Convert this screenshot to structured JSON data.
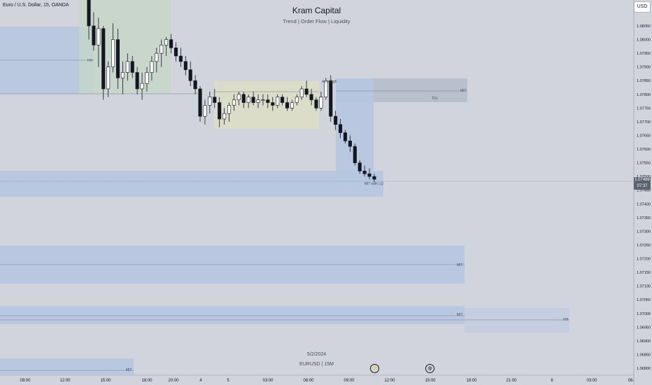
{
  "header": {
    "symbol": "Euro / U.S. Dollar, 15, OANDA",
    "currency_button": "USD"
  },
  "watermark": {
    "title": "Kram Capital",
    "subtitle": "Trend | Order Flow | Liquidity",
    "date": "5/2/2024",
    "symbol_line": "EURUSD | 15M"
  },
  "icons": {
    "left": "flash-icon",
    "right": "globe-icon"
  },
  "colors": {
    "background": "#d1d4dc",
    "zone_blue": "#b6c6e0",
    "zone_green": "#c5d6c8",
    "zone_yellow": "#dbdec6",
    "zone_grey": "#b5bccb",
    "candle": "#131722",
    "candle_up_fill": "#ffffff"
  },
  "chart_data": {
    "type": "candlestick",
    "ylim": [
      1.06775,
      1.08155
    ],
    "price_ticks": [
      "1.08050",
      "1.08000",
      "1.07950",
      "1.07900",
      "1.07850",
      "1.07800",
      "1.07750",
      "1.07700",
      "1.07650",
      "1.07600",
      "1.07550",
      "1.07500",
      "1.07450",
      "1.07400",
      "1.07350",
      "1.07300",
      "1.07250",
      "1.07200",
      "1.07150",
      "1.07100",
      "1.07050",
      "1.07000",
      "1.06950",
      "1.06900",
      "1.06850",
      "1.06800"
    ],
    "time_ticks": [
      "09:00",
      "12:00",
      "15:00",
      "18:00",
      "20:00",
      "4",
      "5",
      "03:00",
      "06:00",
      "09:00",
      "12:00",
      "15:00",
      "18:00",
      "21:00",
      "6",
      "03:00",
      "06:"
    ],
    "current_price": "1.07486",
    "countdown": "07:37",
    "candles": [
      [
        1.0825,
        1.0835,
        1.08,
        1.0805
      ],
      [
        1.0805,
        1.081,
        1.0796,
        1.0798
      ],
      [
        1.0798,
        1.0808,
        1.079,
        1.0804
      ],
      [
        1.0804,
        1.0805,
        1.0778,
        1.0782
      ],
      [
        1.0782,
        1.0792,
        1.0779,
        1.079
      ],
      [
        1.079,
        1.0806,
        1.0788,
        1.08
      ],
      [
        1.08,
        1.0804,
        1.0782,
        1.0786
      ],
      [
        1.0786,
        1.0792,
        1.078,
        1.0788
      ],
      [
        1.0788,
        1.0795,
        1.0785,
        1.0792
      ],
      [
        1.0792,
        1.0794,
        1.0786,
        1.0788
      ],
      [
        1.0788,
        1.079,
        1.078,
        1.0782
      ],
      [
        1.0782,
        1.0788,
        1.0778,
        1.0784
      ],
      [
        1.0784,
        1.079,
        1.0781,
        1.0788
      ],
      [
        1.0788,
        1.0794,
        1.0785,
        1.0792
      ],
      [
        1.0792,
        1.0797,
        1.0788,
        1.0795
      ],
      [
        1.0795,
        1.08,
        1.079,
        1.0798
      ],
      [
        1.0798,
        1.0801,
        1.0794,
        1.08
      ],
      [
        1.08,
        1.0802,
        1.0795,
        1.0797
      ],
      [
        1.0797,
        1.0799,
        1.0792,
        1.0794
      ],
      [
        1.0794,
        1.0797,
        1.079,
        1.0792
      ],
      [
        1.0792,
        1.0794,
        1.0787,
        1.0789
      ],
      [
        1.0789,
        1.0792,
        1.0783,
        1.0785
      ],
      [
        1.0785,
        1.0787,
        1.078,
        1.0782
      ],
      [
        1.0782,
        1.0783,
        1.077,
        1.0772
      ],
      [
        1.0772,
        1.0778,
        1.0769,
        1.0776
      ],
      [
        1.0776,
        1.0781,
        1.0773,
        1.0779
      ],
      [
        1.0779,
        1.0782,
        1.0775,
        1.0777
      ],
      [
        1.0777,
        1.0779,
        1.0768,
        1.0771
      ],
      [
        1.0771,
        1.0775,
        1.0769,
        1.0773
      ],
      [
        1.0773,
        1.0777,
        1.077,
        1.0776
      ],
      [
        1.0776,
        1.078,
        1.0774,
        1.0778
      ],
      [
        1.0778,
        1.0781,
        1.0776,
        1.078
      ],
      [
        1.078,
        1.0781,
        1.0775,
        1.0777
      ],
      [
        1.0777,
        1.078,
        1.0775,
        1.0779
      ],
      [
        1.0779,
        1.0781,
        1.0776,
        1.0777
      ],
      [
        1.0777,
        1.078,
        1.0775,
        1.0778
      ],
      [
        1.0778,
        1.078,
        1.0776,
        1.0778
      ],
      [
        1.0778,
        1.078,
        1.0775,
        1.0777
      ],
      [
        1.0777,
        1.0779,
        1.0774,
        1.0776
      ],
      [
        1.0776,
        1.078,
        1.0775,
        1.0779
      ],
      [
        1.0779,
        1.078,
        1.0776,
        1.0777
      ],
      [
        1.0777,
        1.0779,
        1.0774,
        1.0775
      ],
      [
        1.0775,
        1.0778,
        1.0774,
        1.0777
      ],
      [
        1.0777,
        1.078,
        1.0776,
        1.0779
      ],
      [
        1.0779,
        1.0783,
        1.0778,
        1.0782
      ],
      [
        1.0782,
        1.0785,
        1.0779,
        1.078
      ],
      [
        1.078,
        1.0782,
        1.0776,
        1.0778
      ],
      [
        1.0778,
        1.0779,
        1.0774,
        1.0775
      ],
      [
        1.0775,
        1.0781,
        1.0774,
        1.0779
      ],
      [
        1.0779,
        1.0786,
        1.0778,
        1.0785
      ],
      [
        1.0785,
        1.0787,
        1.077,
        1.0772
      ],
      [
        1.0772,
        1.0774,
        1.0767,
        1.0769
      ],
      [
        1.0769,
        1.0771,
        1.0764,
        1.0766
      ],
      [
        1.0766,
        1.0767,
        1.0762,
        1.0763
      ],
      [
        1.0763,
        1.0765,
        1.0759,
        1.0761
      ],
      [
        1.0761,
        1.0762,
        1.0754,
        1.0755
      ],
      [
        1.0755,
        1.0756,
        1.0751,
        1.0752
      ],
      [
        1.0752,
        1.0754,
        1.075,
        1.0751
      ],
      [
        1.0751,
        1.0753,
        1.0749,
        1.075
      ],
      [
        1.075,
        1.0751,
        1.0748,
        1.0749
      ]
    ]
  },
  "zones": [
    {
      "label": "",
      "color": "zone_blue"
    },
    {
      "label": "",
      "color": "zone_green"
    },
    {
      "label": "",
      "color": "zone_yellow"
    },
    {
      "label": "",
      "color": "zone_grey"
    },
    {
      "label": "",
      "color": "zone_blue"
    },
    {
      "label": "",
      "color": "zone_blue"
    },
    {
      "label": "",
      "color": "zone_blue"
    },
    {
      "label": "",
      "color": "zone_blue"
    }
  ],
  "annotations": {
    "hh_left": "HH",
    "asia_high": "Asia High",
    "mit_upper": "MIT",
    "tdl": "TDL",
    "mit_with_lq": "MIT with LQ",
    "mit_mid": "MIT",
    "mit_low": "MIT",
    "hh_right": "HH",
    "mit_bottom": "MIT"
  }
}
